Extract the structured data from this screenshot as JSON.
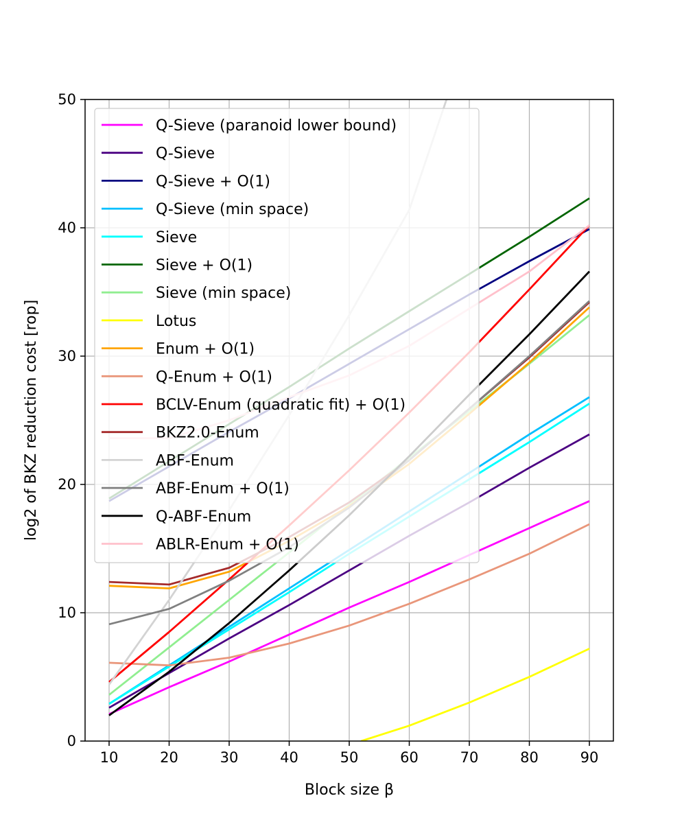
{
  "chart_data": {
    "type": "line",
    "title": "",
    "xlabel": "Block size β",
    "ylabel": "log2 of BKZ reduction cost [rop]",
    "xlim": [
      6,
      94
    ],
    "ylim": [
      0,
      50
    ],
    "xticks": [
      10,
      20,
      30,
      40,
      50,
      60,
      70,
      80,
      90
    ],
    "yticks": [
      0,
      10,
      20,
      30,
      40,
      50
    ],
    "grid": true,
    "legend_position": "upper-left",
    "series": [
      {
        "name": "Q-Sieve (paranoid lower bound)",
        "color": "#ff00ff",
        "x": [
          10,
          20,
          30,
          40,
          50,
          60,
          70,
          80,
          90
        ],
        "y": [
          2.1,
          4.2,
          6.2,
          8.3,
          10.4,
          12.4,
          14.5,
          16.6,
          18.7
        ]
      },
      {
        "name": "Q-Sieve",
        "color": "#4b0082",
        "x": [
          10,
          20,
          30,
          40,
          50,
          60,
          70,
          80,
          90
        ],
        "y": [
          2.6,
          5.3,
          8.0,
          10.6,
          13.3,
          16.0,
          18.6,
          21.3,
          23.9
        ]
      },
      {
        "name": "Q-Sieve + O(1)",
        "color": "#000080",
        "x": [
          10,
          20,
          30,
          40,
          50,
          60,
          70,
          80,
          90
        ],
        "y": [
          18.7,
          21.4,
          24.1,
          26.7,
          29.4,
          32.1,
          34.8,
          37.4,
          39.9
        ]
      },
      {
        "name": "Q-Sieve (min space)",
        "color": "#00bfff",
        "x": [
          10,
          20,
          30,
          40,
          50,
          60,
          70,
          80,
          90
        ],
        "y": [
          2.9,
          5.9,
          8.9,
          11.9,
          14.9,
          17.9,
          20.9,
          23.9,
          26.8
        ]
      },
      {
        "name": "Sieve",
        "color": "#00ffff",
        "x": [
          10,
          20,
          30,
          40,
          50,
          60,
          70,
          80,
          90
        ],
        "y": [
          2.9,
          5.8,
          8.7,
          11.6,
          14.6,
          17.5,
          20.4,
          23.3,
          26.3
        ]
      },
      {
        "name": "Sieve + O(1)",
        "color": "#006400",
        "x": [
          10,
          20,
          30,
          40,
          50,
          60,
          70,
          80,
          90
        ],
        "y": [
          18.9,
          21.8,
          24.7,
          27.6,
          30.6,
          33.5,
          36.4,
          39.3,
          42.3
        ]
      },
      {
        "name": "Sieve (min space)",
        "color": "#90ee90",
        "x": [
          10,
          20,
          30,
          40,
          50,
          60,
          70,
          80,
          90
        ],
        "y": [
          3.6,
          7.3,
          11.0,
          14.7,
          18.4,
          22.1,
          25.7,
          29.4,
          33.2
        ]
      },
      {
        "name": "Lotus",
        "color": "#ffff00",
        "x": [
          52,
          60,
          70,
          80,
          90
        ],
        "y": [
          0.0,
          1.2,
          3.0,
          5.0,
          7.2
        ]
      },
      {
        "name": "Enum + O(1)",
        "color": "#ffa500",
        "x": [
          10,
          20,
          30,
          40,
          50,
          60,
          70,
          80,
          90
        ],
        "y": [
          12.1,
          11.9,
          13.2,
          15.6,
          18.3,
          21.6,
          25.5,
          29.5,
          33.8
        ]
      },
      {
        "name": "Q-Enum + O(1)",
        "color": "#e9967a",
        "x": [
          10,
          20,
          30,
          40,
          50,
          60,
          70,
          80,
          90
        ],
        "y": [
          6.1,
          5.9,
          6.5,
          7.6,
          9.0,
          10.7,
          12.6,
          14.6,
          16.9
        ]
      },
      {
        "name": "BCLV-Enum (quadratic fit) + O(1)",
        "color": "#ff0000",
        "x": [
          10,
          20,
          30,
          40,
          50,
          60,
          70,
          80,
          90
        ],
        "y": [
          4.6,
          8.5,
          12.6,
          16.8,
          21.1,
          25.6,
          30.3,
          35.2,
          40.2
        ]
      },
      {
        "name": "BKZ2.0-Enum",
        "color": "#a52a2a",
        "x": [
          10,
          20,
          30,
          40,
          50,
          60,
          70,
          80,
          90
        ],
        "y": [
          12.4,
          12.2,
          13.5,
          15.9,
          18.6,
          21.9,
          25.9,
          29.9,
          34.2
        ]
      },
      {
        "name": "ABF-Enum",
        "color": "#d3d3d3",
        "x": [
          10,
          20,
          30,
          40,
          50,
          60,
          66.2
        ],
        "y": [
          4.4,
          11.0,
          18.0,
          25.4,
          33.2,
          41.4,
          50.0
        ]
      },
      {
        "name": "ABF-Enum + O(1)",
        "color": "#808080",
        "x": [
          10,
          20,
          30,
          40,
          50,
          60,
          70,
          80,
          90
        ],
        "y": [
          9.1,
          10.3,
          12.5,
          15.1,
          18.2,
          21.9,
          25.9,
          30.0,
          34.3
        ]
      },
      {
        "name": "Q-ABF-Enum",
        "color": "#000000",
        "x": [
          10,
          20,
          30,
          40,
          50,
          60,
          70,
          80,
          90
        ],
        "y": [
          2.0,
          5.4,
          9.2,
          13.3,
          17.6,
          22.2,
          27.0,
          31.7,
          36.6
        ]
      },
      {
        "name": "ABLR-Enum + O(1)",
        "color": "#ffc0cb",
        "x": [
          10,
          20,
          30,
          40,
          50,
          60,
          70,
          80,
          90
        ],
        "y": [
          23.6,
          23.6,
          25.0,
          26.8,
          28.5,
          30.8,
          33.7,
          36.6,
          40.2
        ]
      }
    ]
  }
}
